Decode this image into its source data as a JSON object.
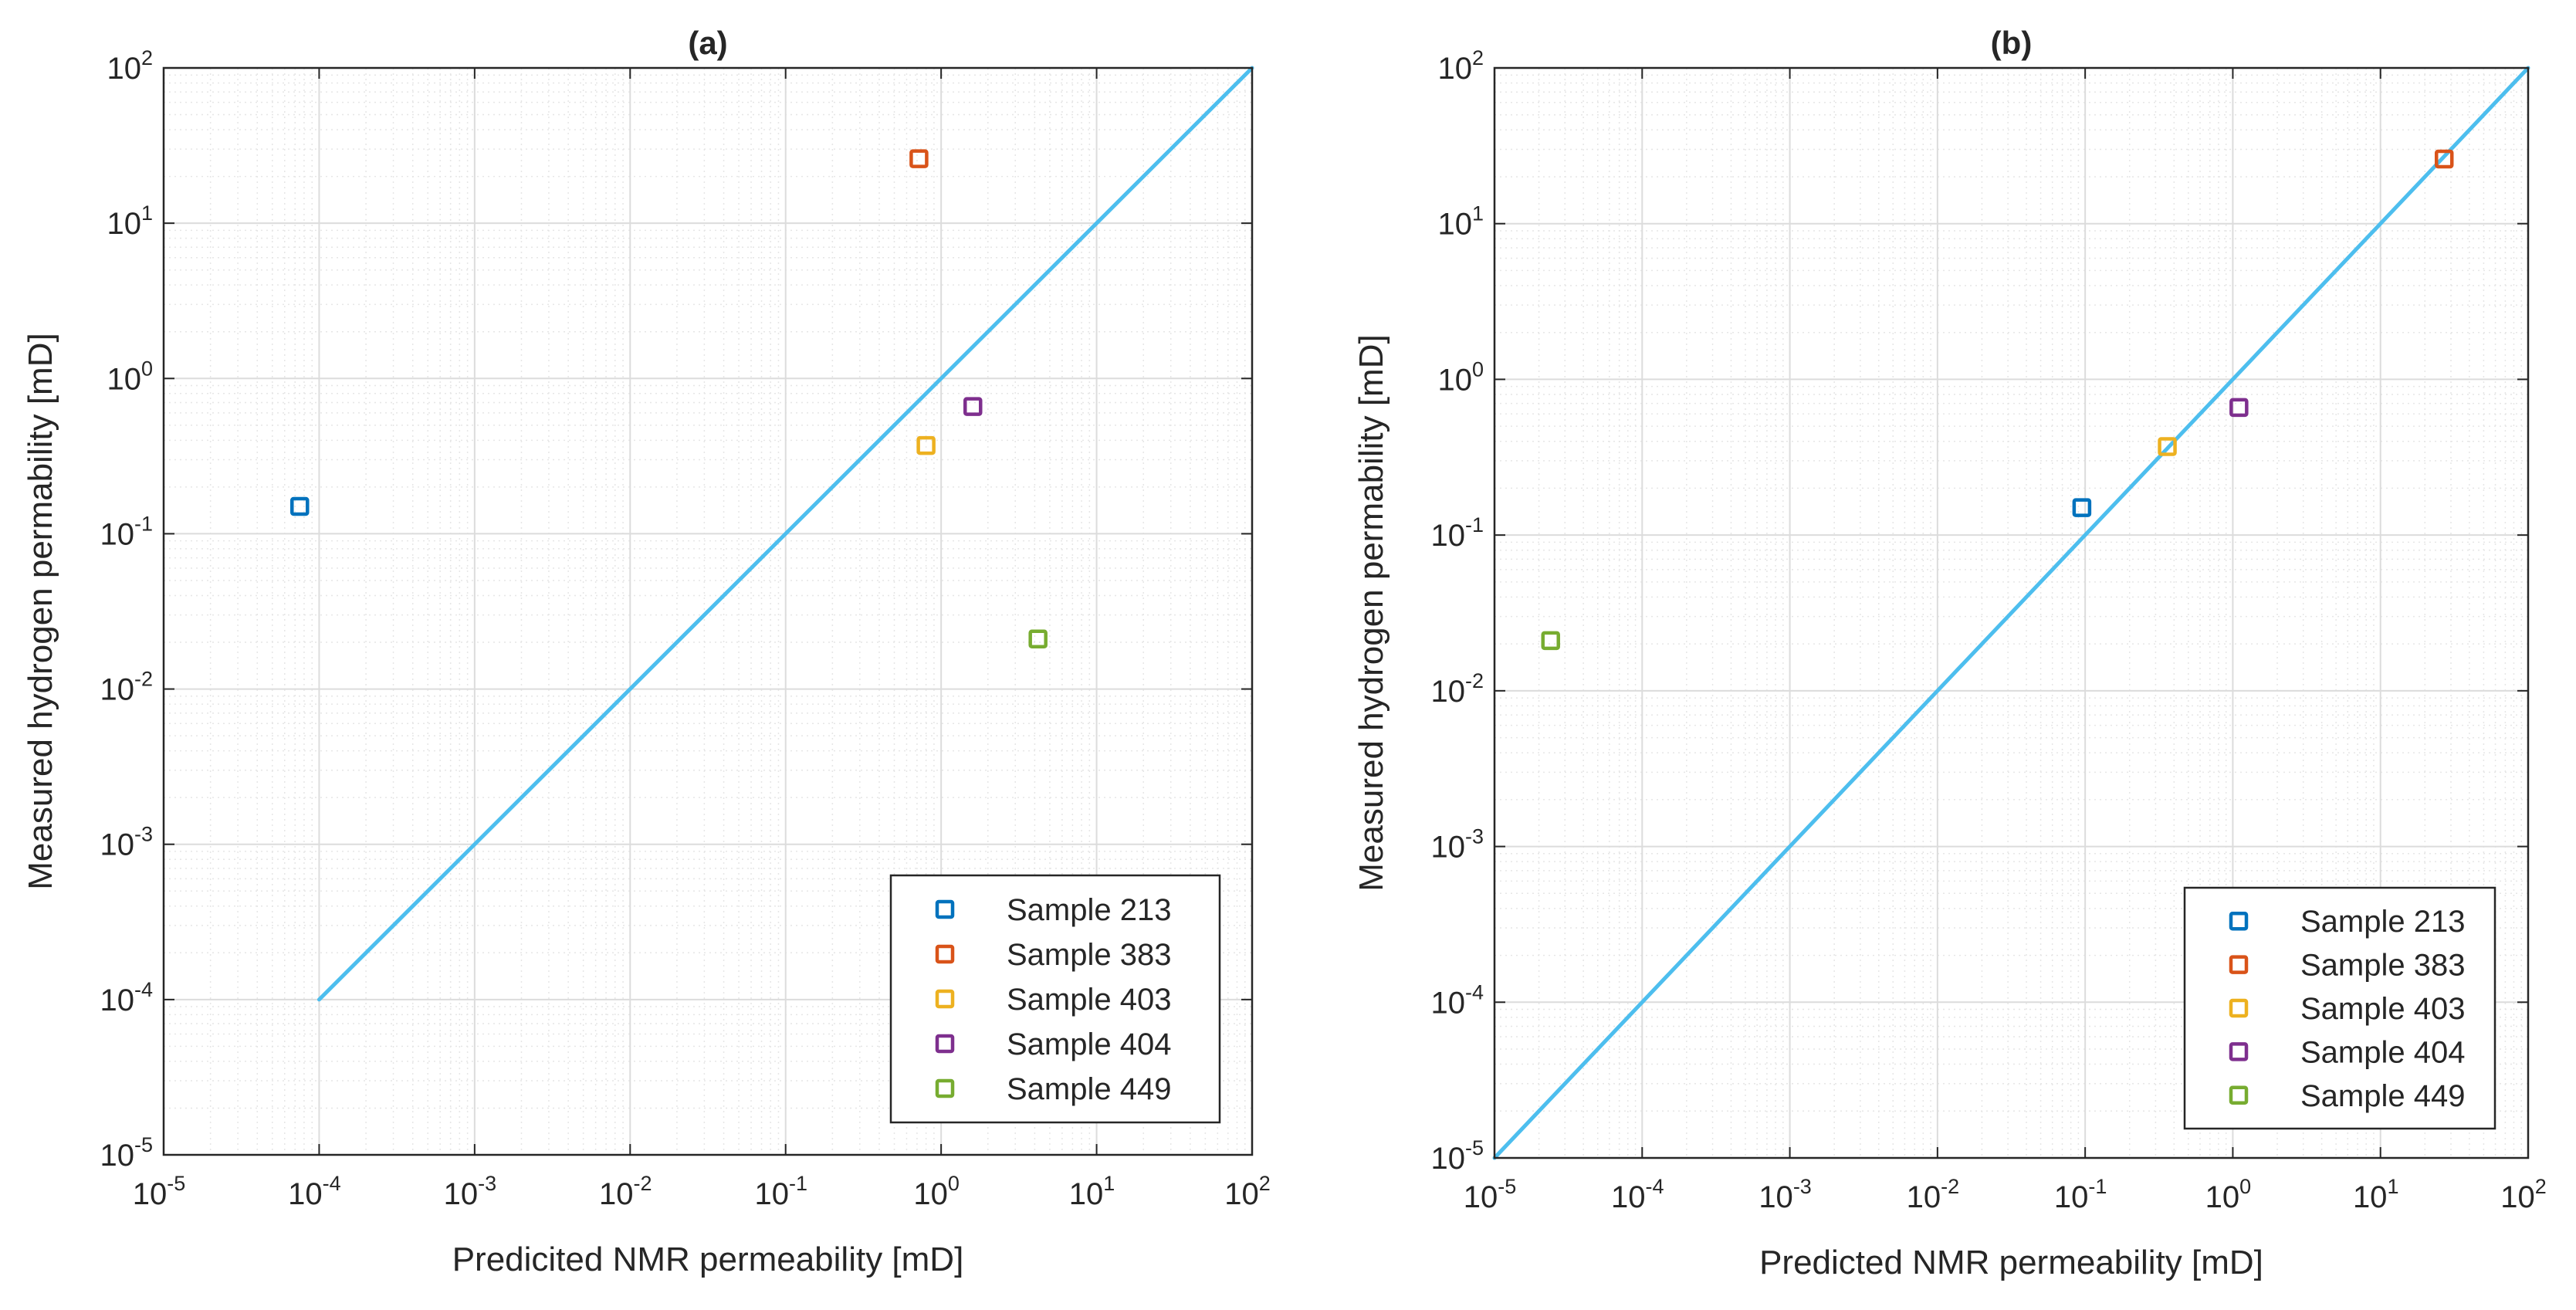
{
  "chart_data": [
    {
      "type": "scatter",
      "title": "(a)",
      "xlabel": "Predicited  NMR permeability [mD]",
      "ylabel": "Measured hydrogen permability [mD]",
      "xscale": "log",
      "yscale": "log",
      "xlim": [
        1e-05,
        100
      ],
      "ylim": [
        1e-05,
        100
      ],
      "x_ticks": [
        {
          "value": 1e-05,
          "base": "10",
          "exp": "-5"
        },
        {
          "value": 0.0001,
          "base": "10",
          "exp": "-4"
        },
        {
          "value": 0.001,
          "base": "10",
          "exp": "-3"
        },
        {
          "value": 0.01,
          "base": "10",
          "exp": "-2"
        },
        {
          "value": 0.1,
          "base": "10",
          "exp": "-1"
        },
        {
          "value": 1,
          "base": "10",
          "exp": "0"
        },
        {
          "value": 10,
          "base": "10",
          "exp": "1"
        },
        {
          "value": 100,
          "base": "10",
          "exp": "2"
        }
      ],
      "y_ticks": [
        {
          "value": 1e-05,
          "base": "10",
          "exp": "-5"
        },
        {
          "value": 0.0001,
          "base": "10",
          "exp": "-4"
        },
        {
          "value": 0.001,
          "base": "10",
          "exp": "-3"
        },
        {
          "value": 0.01,
          "base": "10",
          "exp": "-2"
        },
        {
          "value": 0.1,
          "base": "10",
          "exp": "-1"
        },
        {
          "value": 1,
          "base": "10",
          "exp": "0"
        },
        {
          "value": 10,
          "base": "10",
          "exp": "1"
        },
        {
          "value": 100,
          "base": "10",
          "exp": "2"
        }
      ],
      "grid": true,
      "legend_position": "bottom-right",
      "reference_line": {
        "x": [
          0.0001,
          100
        ],
        "y": [
          0.0001,
          100
        ],
        "color": "#4DBEEE"
      },
      "series": [
        {
          "name": "Sample 213",
          "color": "#0072BD",
          "x": [
            7.5e-05
          ],
          "y": [
            0.15
          ]
        },
        {
          "name": "Sample 383",
          "color": "#D95319",
          "x": [
            0.72
          ],
          "y": [
            26
          ]
        },
        {
          "name": "Sample 403",
          "color": "#EDB120",
          "x": [
            0.8
          ],
          "y": [
            0.37
          ]
        },
        {
          "name": "Sample 404",
          "color": "#7E2F8E",
          "x": [
            1.6
          ],
          "y": [
            0.66
          ]
        },
        {
          "name": "Sample 449",
          "color": "#77AC30",
          "x": [
            4.2
          ],
          "y": [
            0.021
          ]
        }
      ]
    },
    {
      "type": "scatter",
      "title": "(b)",
      "xlabel": "Predicted  NMR permeability [mD]",
      "ylabel": "Measured hydrogen permability [mD]",
      "xscale": "log",
      "yscale": "log",
      "xlim": [
        1e-05,
        100
      ],
      "ylim": [
        1e-05,
        100
      ],
      "x_ticks": [
        {
          "value": 1e-05,
          "base": "10",
          "exp": "-5"
        },
        {
          "value": 0.0001,
          "base": "10",
          "exp": "-4"
        },
        {
          "value": 0.001,
          "base": "10",
          "exp": "-3"
        },
        {
          "value": 0.01,
          "base": "10",
          "exp": "-2"
        },
        {
          "value": 0.1,
          "base": "10",
          "exp": "-1"
        },
        {
          "value": 1,
          "base": "10",
          "exp": "0"
        },
        {
          "value": 10,
          "base": "10",
          "exp": "1"
        },
        {
          "value": 100,
          "base": "10",
          "exp": "2"
        }
      ],
      "y_ticks": [
        {
          "value": 1e-05,
          "base": "10",
          "exp": "-5"
        },
        {
          "value": 0.0001,
          "base": "10",
          "exp": "-4"
        },
        {
          "value": 0.001,
          "base": "10",
          "exp": "-3"
        },
        {
          "value": 0.01,
          "base": "10",
          "exp": "-2"
        },
        {
          "value": 0.1,
          "base": "10",
          "exp": "-1"
        },
        {
          "value": 1,
          "base": "10",
          "exp": "0"
        },
        {
          "value": 10,
          "base": "10",
          "exp": "1"
        },
        {
          "value": 100,
          "base": "10",
          "exp": "2"
        }
      ],
      "grid": true,
      "legend_position": "bottom-right",
      "reference_line": {
        "x": [
          1e-05,
          100
        ],
        "y": [
          1e-05,
          100
        ],
        "color": "#4DBEEE"
      },
      "series": [
        {
          "name": "Sample 213",
          "color": "#0072BD",
          "x": [
            0.095
          ],
          "y": [
            0.15
          ]
        },
        {
          "name": "Sample 383",
          "color": "#D95319",
          "x": [
            27
          ],
          "y": [
            26
          ]
        },
        {
          "name": "Sample 403",
          "color": "#EDB120",
          "x": [
            0.36
          ],
          "y": [
            0.37
          ]
        },
        {
          "name": "Sample 404",
          "color": "#7E2F8E",
          "x": [
            1.1
          ],
          "y": [
            0.66
          ]
        },
        {
          "name": "Sample 449",
          "color": "#77AC30",
          "x": [
            2.4e-05
          ],
          "y": [
            0.021
          ]
        }
      ]
    }
  ]
}
